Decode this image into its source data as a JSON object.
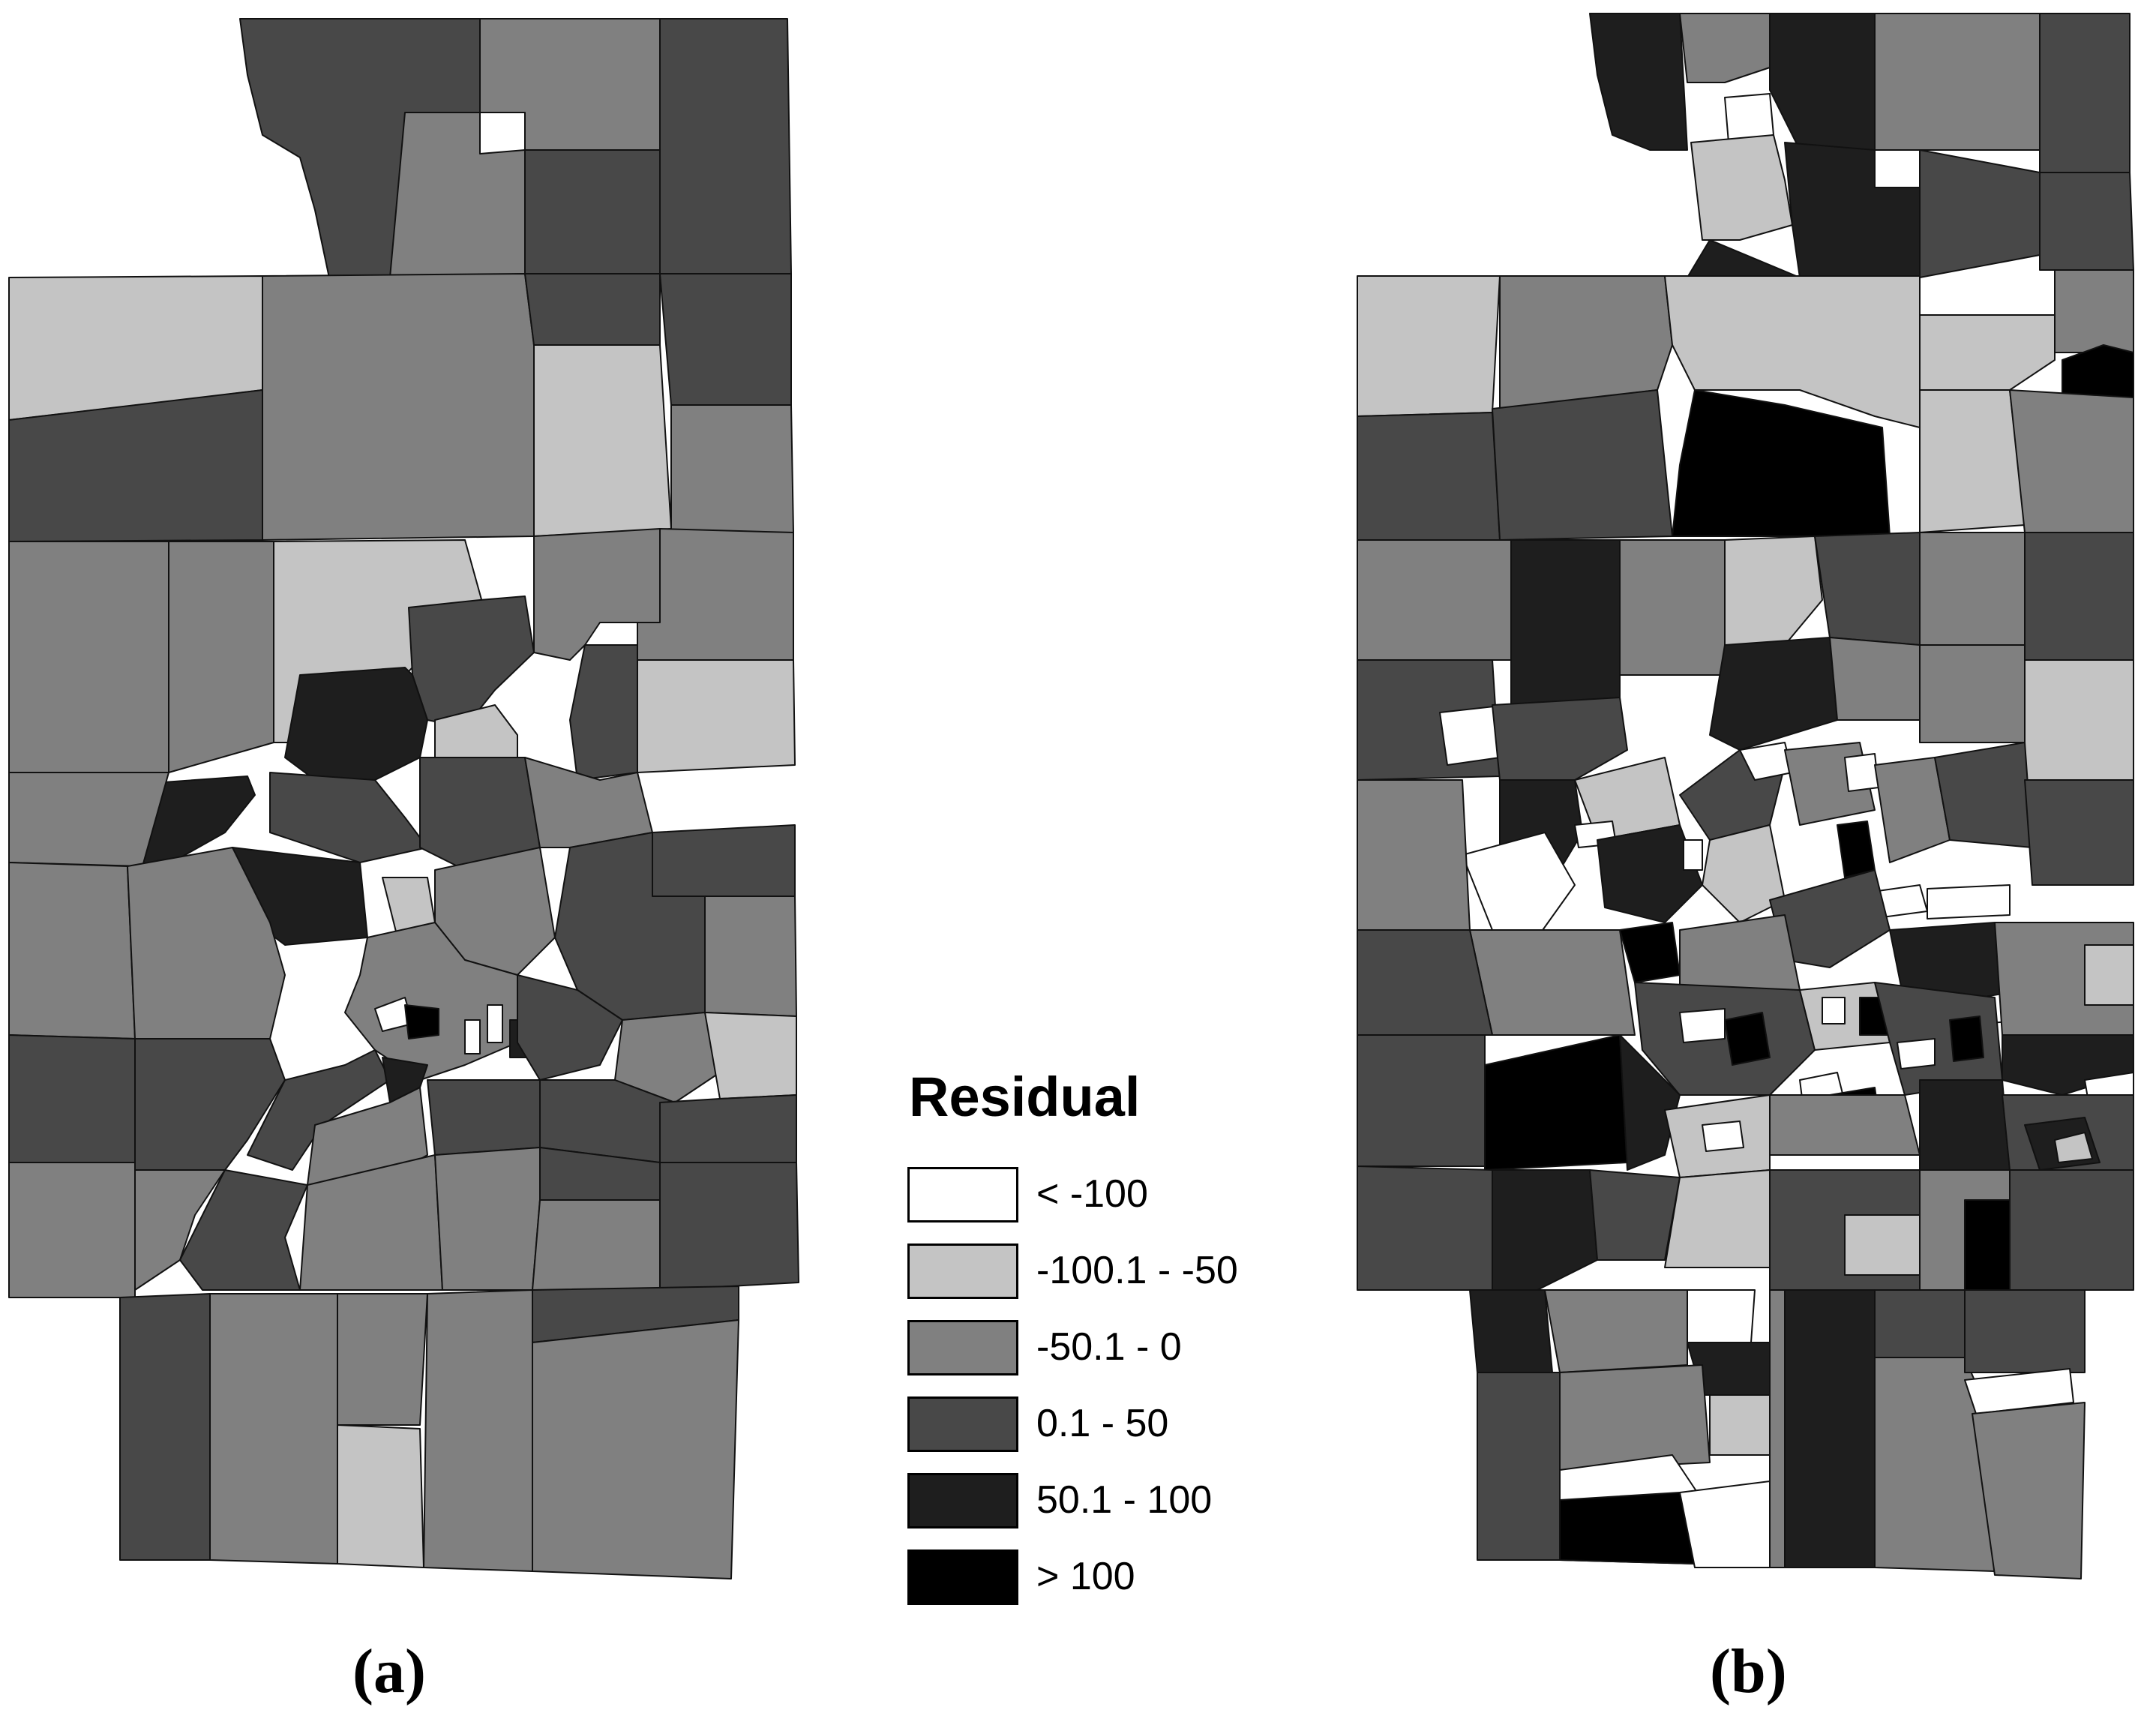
{
  "legend": {
    "title": "Residual",
    "classes": [
      {
        "label": "< -100",
        "color": "#ffffff"
      },
      {
        "label": "-100.1 - -50",
        "color": "#c4c4c4"
      },
      {
        "label": "-50.1 - 0",
        "color": "#808080"
      },
      {
        "label": "0.1 - 50",
        "color": "#484848"
      },
      {
        "label": "50.1 - 100",
        "color": "#1e1e1e"
      },
      {
        "label": "> 100",
        "color": "#000000"
      }
    ]
  },
  "panels": [
    {
      "label": "(a)"
    },
    {
      "label": "(b)"
    }
  ]
}
